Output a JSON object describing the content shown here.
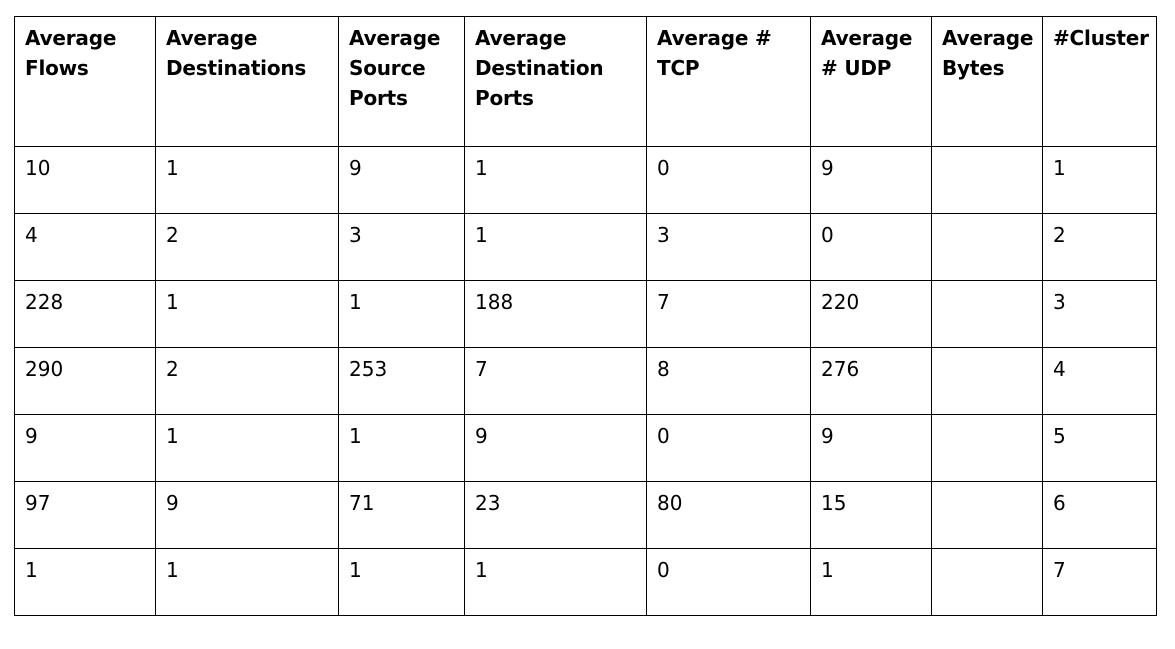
{
  "table": {
    "headers": [
      "Average Flows",
      "Average Destinations",
      "Average Source Ports",
      "Average Destination Ports",
      "Average # TCP",
      "Average # UDP",
      "Average Bytes",
      "#Cluster"
    ],
    "rows": [
      [
        "10",
        "1",
        "9",
        "1",
        "0",
        "9",
        "",
        "1"
      ],
      [
        "4",
        "2",
        "3",
        "1",
        "3",
        "0",
        "",
        "2"
      ],
      [
        "228",
        "1",
        "1",
        "188",
        "7",
        "220",
        "",
        "3"
      ],
      [
        "290",
        "2",
        "253",
        "7",
        "8",
        "276",
        "",
        "4"
      ],
      [
        "9",
        "1",
        "1",
        "9",
        "0",
        "9",
        "",
        "5"
      ],
      [
        "97",
        "9",
        "71",
        "23",
        "80",
        "15",
        "",
        "6"
      ],
      [
        "1",
        "1",
        "1",
        "1",
        "0",
        "1",
        "",
        "7"
      ]
    ]
  }
}
